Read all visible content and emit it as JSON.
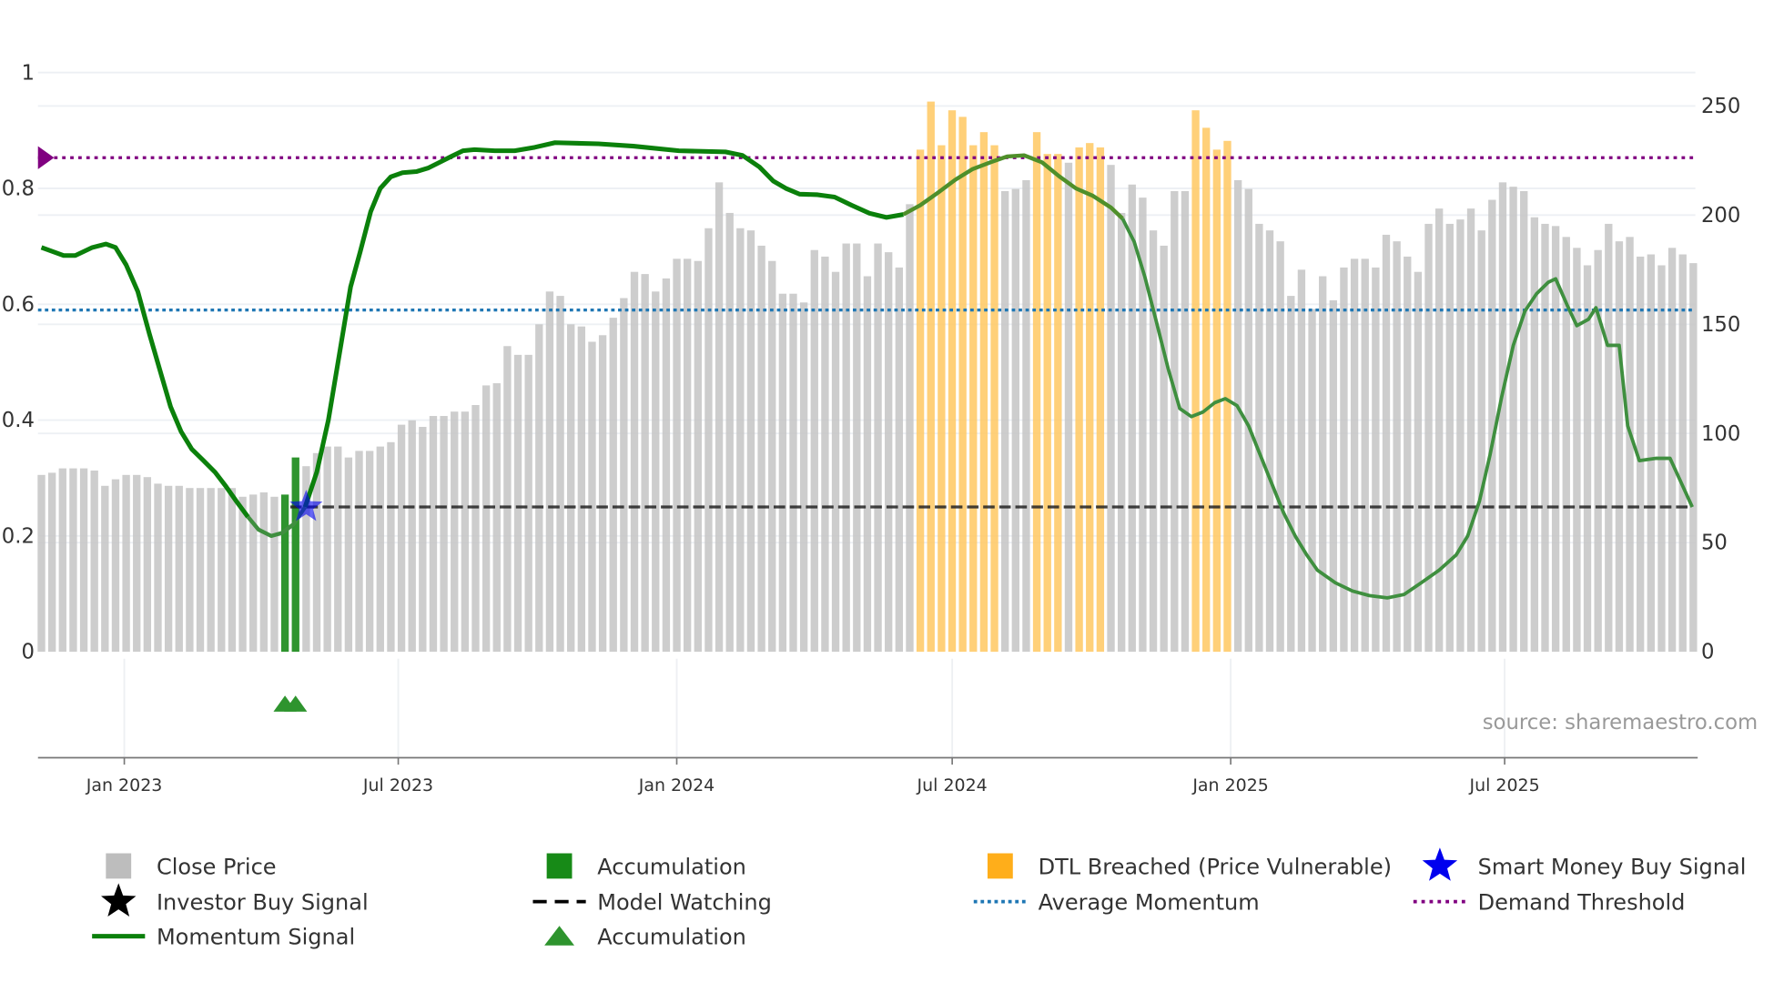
{
  "chart_data": {
    "type": "bar",
    "title": "",
    "x_unit": "week index (weekly bars)",
    "start_week": "2022-11-07",
    "x_tick_labels": [
      "Jan 2023",
      "Jul 2023",
      "Jan 2024",
      "Jul 2024",
      "Jan 2025",
      "Jul 2025"
    ],
    "x_tick_dates": [
      "2023-01-01",
      "2023-07-01",
      "2024-01-01",
      "2024-07-01",
      "2025-01-01",
      "2025-07-01"
    ],
    "left_axis": {
      "ylim": [
        0,
        1
      ],
      "tick_labels": [
        "0",
        "0.2",
        "0.4",
        "0.6",
        "0.8",
        "1"
      ],
      "ticks": [
        0,
        0.2,
        0.4,
        0.6,
        0.8,
        1
      ]
    },
    "right_axis": {
      "ylim": [
        0,
        250
      ],
      "tick_labels": [
        "0",
        "50",
        "100",
        "150",
        "200",
        "250"
      ],
      "ticks": [
        0,
        50,
        100,
        150,
        200,
        250
      ]
    },
    "close_price": [
      81,
      82,
      84,
      84,
      84,
      83,
      76,
      79,
      81,
      81,
      80,
      77,
      76,
      76,
      75,
      75,
      75,
      75,
      75,
      71,
      72,
      73,
      71,
      72,
      89,
      85,
      91,
      94,
      94,
      89,
      92,
      92,
      94,
      96,
      104,
      106,
      103,
      108,
      108,
      110,
      110,
      113,
      122,
      123,
      140,
      136,
      136,
      150,
      165,
      163,
      150,
      149,
      142,
      145,
      153,
      162,
      174,
      173,
      165,
      171,
      180,
      180,
      179,
      194,
      215,
      201,
      194,
      193,
      186,
      179,
      164,
      164,
      160,
      184,
      181,
      174,
      187,
      187,
      172,
      187,
      183,
      176,
      205,
      230,
      252,
      232,
      248,
      245,
      232,
      238,
      232,
      211,
      212,
      216,
      238,
      228,
      228,
      224,
      231,
      233,
      231,
      223,
      201,
      214,
      208,
      193,
      186,
      211,
      211,
      248,
      240,
      230,
      234,
      216,
      212,
      196,
      193,
      188,
      163,
      175,
      157,
      172,
      161,
      176,
      180,
      180,
      176,
      191,
      188,
      181,
      174,
      196,
      203,
      196,
      198,
      203,
      193,
      207,
      215,
      213,
      211,
      199,
      196,
      195,
      190,
      185,
      177,
      184,
      196,
      188,
      190,
      181,
      182,
      177,
      185,
      182,
      178
    ],
    "accumulation_weeks": [
      23,
      24
    ],
    "dtl_breached_weeks": [
      83,
      84,
      85,
      86,
      87,
      88,
      89,
      90,
      94,
      95,
      96,
      98,
      99,
      100,
      109,
      110,
      111,
      112
    ],
    "momentum_signal": [
      [
        0,
        0.698
      ],
      [
        2.1,
        0.684
      ],
      [
        3.2,
        0.684
      ],
      [
        4.8,
        0.698
      ],
      [
        6.1,
        0.704
      ],
      [
        7,
        0.698
      ],
      [
        8,
        0.668
      ],
      [
        9.1,
        0.622
      ],
      [
        10.2,
        0.549
      ],
      [
        11.3,
        0.479
      ],
      [
        12.2,
        0.423
      ],
      [
        13.2,
        0.38
      ],
      [
        14.2,
        0.35
      ],
      [
        15.3,
        0.33
      ],
      [
        16.4,
        0.31
      ],
      [
        17.4,
        0.286
      ],
      [
        18.4,
        0.26
      ],
      [
        19.5,
        0.233
      ],
      [
        20.5,
        0.211
      ],
      [
        21.7,
        0.2
      ],
      [
        22.7,
        0.205
      ],
      [
        23.8,
        0.22
      ],
      [
        24.9,
        0.25
      ],
      [
        26,
        0.31
      ],
      [
        27.1,
        0.4
      ],
      [
        28.2,
        0.52
      ],
      [
        29.2,
        0.63
      ],
      [
        30.1,
        0.69
      ],
      [
        31.1,
        0.76
      ],
      [
        32,
        0.8
      ],
      [
        33,
        0.82
      ],
      [
        34.1,
        0.827
      ],
      [
        35.4,
        0.829
      ],
      [
        36.5,
        0.835
      ],
      [
        37.6,
        0.845
      ],
      [
        38.7,
        0.855
      ],
      [
        39.8,
        0.865
      ],
      [
        40.9,
        0.867
      ],
      [
        42.8,
        0.865
      ],
      [
        44.7,
        0.865
      ],
      [
        46.6,
        0.871
      ],
      [
        48.5,
        0.879
      ],
      [
        52.6,
        0.877
      ],
      [
        55.9,
        0.873
      ],
      [
        60.2,
        0.865
      ],
      [
        64.6,
        0.863
      ],
      [
        66.2,
        0.857
      ],
      [
        67.8,
        0.837
      ],
      [
        69.1,
        0.813
      ],
      [
        70.3,
        0.8
      ],
      [
        71.6,
        0.79
      ],
      [
        73.3,
        0.789
      ],
      [
        74.9,
        0.785
      ],
      [
        76.5,
        0.771
      ],
      [
        78.2,
        0.757
      ],
      [
        79.8,
        0.75
      ],
      [
        81.4,
        0.755
      ],
      [
        83,
        0.771
      ],
      [
        84.7,
        0.793
      ],
      [
        86.3,
        0.815
      ],
      [
        87.9,
        0.833
      ],
      [
        89.6,
        0.845
      ],
      [
        91.2,
        0.855
      ],
      [
        92.8,
        0.857
      ],
      [
        94.5,
        0.845
      ],
      [
        96.1,
        0.821
      ],
      [
        97.7,
        0.8
      ],
      [
        99.3,
        0.787
      ],
      [
        101,
        0.767
      ],
      [
        102.1,
        0.748
      ],
      [
        103.2,
        0.708
      ],
      [
        104.2,
        0.648
      ],
      [
        105.3,
        0.569
      ],
      [
        106.4,
        0.489
      ],
      [
        107.5,
        0.42
      ],
      [
        108.6,
        0.406
      ],
      [
        109.7,
        0.414
      ],
      [
        110.8,
        0.43
      ],
      [
        111.8,
        0.437
      ],
      [
        112.9,
        0.425
      ],
      [
        114,
        0.39
      ],
      [
        115.1,
        0.34
      ],
      [
        116.2,
        0.29
      ],
      [
        117.3,
        0.24
      ],
      [
        118.4,
        0.2
      ],
      [
        119.5,
        0.167
      ],
      [
        120.5,
        0.141
      ],
      [
        122.2,
        0.119
      ],
      [
        123.8,
        0.105
      ],
      [
        125.4,
        0.097
      ],
      [
        127.1,
        0.093
      ],
      [
        128.7,
        0.099
      ],
      [
        130.3,
        0.119
      ],
      [
        132,
        0.141
      ],
      [
        133.6,
        0.167
      ],
      [
        134.7,
        0.2
      ],
      [
        135.8,
        0.26
      ],
      [
        136.8,
        0.34
      ],
      [
        137.9,
        0.44
      ],
      [
        139,
        0.529
      ],
      [
        140.1,
        0.588
      ],
      [
        141.2,
        0.618
      ],
      [
        142.3,
        0.638
      ],
      [
        143,
        0.644
      ],
      [
        144.1,
        0.598
      ],
      [
        145,
        0.563
      ],
      [
        146.1,
        0.574
      ],
      [
        146.8,
        0.594
      ],
      [
        147.9,
        0.529
      ],
      [
        149,
        0.529
      ],
      [
        149.8,
        0.39
      ],
      [
        150.9,
        0.33
      ],
      [
        152.5,
        0.334
      ],
      [
        153.8,
        0.334
      ],
      [
        154.9,
        0.29
      ],
      [
        155.9,
        0.25
      ]
    ],
    "smart_money_buy_signal": {
      "week": 25,
      "value": 0.25
    },
    "model_watching": {
      "from_week": 23.5,
      "value": 0.25
    },
    "average_momentum": 0.59,
    "demand_threshold": 0.853,
    "accumulation_markers_weeks": [
      23,
      24
    ],
    "colors": {
      "close": "#c4c4c4",
      "accumulation": "#2e942e",
      "dtl": "#ffc862",
      "momentum": "#0b800b",
      "smart_money": "#0000ee",
      "avg": "#1f77b4",
      "demand": "#800080",
      "watch": "#222222"
    },
    "legend": {
      "placement": "bottom",
      "items": [
        "Close Price",
        "Accumulation",
        "DTL Breached (Price Vulnerable)",
        "Smart Money Buy Signal",
        "Investor Buy Signal",
        "Model Watching",
        "Average Momentum",
        "Demand Threshold",
        "Momentum Signal",
        "Accumulation"
      ]
    },
    "annotation": "source: sharemaestro.com"
  }
}
